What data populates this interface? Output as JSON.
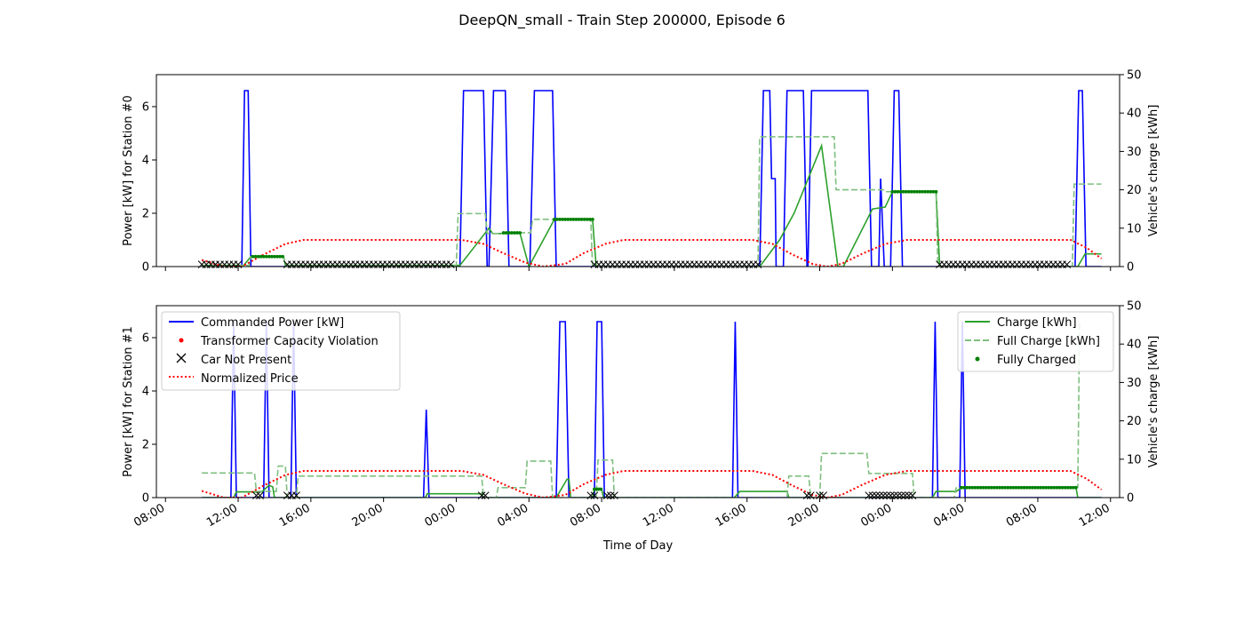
{
  "figure": {
    "title": "DeepQN_small - Train Step 200000, Episode 6"
  },
  "legend_left": [
    {
      "label": "Commanded Power [kW]",
      "color": "#0000ff",
      "style": "line"
    },
    {
      "label": "Transformer Capacity Violation",
      "color": "#ff0000",
      "style": "dot"
    },
    {
      "label": "Car Not Present",
      "color": "#000000",
      "style": "x"
    },
    {
      "label": "Normalized Price",
      "color": "#ff0000",
      "style": "dotted"
    }
  ],
  "legend_right": [
    {
      "label": "Charge [kWh]",
      "color": "#2ca02c",
      "style": "line"
    },
    {
      "label": "Full Charge [kWh]",
      "color": "#7fbf7f",
      "style": "dashed"
    },
    {
      "label": "Fully Charged",
      "color": "#008000",
      "style": "dot"
    }
  ],
  "chart_data": [
    {
      "type": "line",
      "panel": "station-0",
      "title": "",
      "xlabel": "",
      "ylabel": "Power [kW] for Station #0",
      "ylabel_right": "Vehicle's charge [kWh]",
      "x_unit": "hours since 08:00 on day 1",
      "xlim": [
        -0.5,
        52.5
      ],
      "ylim": [
        0,
        7.2
      ],
      "ylim_right": [
        0,
        50
      ],
      "yticks": [
        0,
        2,
        4,
        6
      ],
      "yticks_right": [
        0,
        10,
        20,
        30,
        40,
        50
      ],
      "show_xtick_labels": false,
      "series": [
        {
          "name": "Commanded Power [kW]",
          "axis": "left",
          "color": "#0000ff",
          "x": [
            2,
            4.2,
            4.35,
            4.55,
            4.7,
            16.2,
            16.4,
            17.5,
            17.7,
            17.8,
            18.05,
            18.7,
            18.9,
            19.75,
            19.95,
            20.05,
            20.3,
            21.3,
            21.5,
            32.7,
            32.9,
            33.25,
            33.35,
            33.45,
            33.55,
            33.6,
            33.75,
            33.8,
            33.9,
            34.0,
            34.2,
            35.1,
            35.3,
            35.35,
            35.55,
            38.65,
            38.85,
            39.25,
            39.35,
            39.55,
            39.6,
            39.9,
            40.1,
            40.35,
            40.55,
            50.05,
            50.25,
            50.45,
            50.65,
            51.5
          ],
          "y": [
            0,
            0,
            6.6,
            6.6,
            0,
            0,
            6.6,
            6.6,
            0,
            0,
            6.6,
            6.6,
            0,
            0,
            0,
            0,
            6.6,
            6.6,
            0,
            0,
            6.6,
            6.6,
            3.3,
            3.3,
            3.3,
            0,
            0,
            0,
            0,
            0,
            6.6,
            6.6,
            0,
            0,
            6.6,
            6.6,
            0,
            0,
            3.3,
            0,
            0,
            0,
            6.6,
            6.6,
            0,
            0,
            6.6,
            6.6,
            0,
            0
          ]
        },
        {
          "name": "Charge [kWh]",
          "axis": "right",
          "color": "#2ca02c",
          "x": [
            2,
            4.3,
            4.7,
            6.5,
            6.6,
            16.2,
            17.8,
            18.0,
            18.6,
            19.5,
            20.0,
            21.4,
            22.5,
            23.5,
            23.7,
            32.7,
            33.8,
            34.6,
            36.1,
            37.0,
            37.3,
            38.9,
            39.6,
            40.0,
            42.4,
            42.6,
            50.2,
            50.6,
            51.5
          ],
          "y": [
            0.3,
            0.3,
            2.6,
            2.6,
            0.3,
            0.3,
            10,
            8.6,
            8.6,
            8.8,
            0,
            12.3,
            12.3,
            12.3,
            0,
            0,
            7,
            14,
            31.5,
            0,
            0,
            15,
            15.5,
            19.5,
            19.5,
            0,
            0,
            3.3,
            3.3
          ]
        },
        {
          "name": "Full Charge [kWh]",
          "axis": "right",
          "color": "#7fbf7f",
          "style": "dashed",
          "x": [
            2,
            4.6,
            4.7,
            6.5,
            6.6,
            16.0,
            16.1,
            17.6,
            17.7,
            19.5,
            19.6,
            20.1,
            20.2,
            23.4,
            23.5,
            32.6,
            32.7,
            36.8,
            36.9,
            39.5,
            39.6,
            42.4,
            42.5,
            49.9,
            50.0,
            51.5
          ],
          "y": [
            0.3,
            0.3,
            2.6,
            2.6,
            0.3,
            0.3,
            13.8,
            13.8,
            8.6,
            8.6,
            8.8,
            8.8,
            12.3,
            12.3,
            0,
            0,
            33.8,
            33.8,
            20,
            20,
            19.5,
            19.5,
            0,
            0,
            21.5,
            21.5
          ]
        },
        {
          "name": "Normalized Price",
          "axis": "left",
          "color": "#ff0000",
          "style": "dotted",
          "x": [
            2,
            3.2,
            4.2,
            5.4,
            6.6,
            7.6,
            16.3,
            17.5,
            18.6,
            19.8,
            20.8,
            22.0,
            23.0,
            24.2,
            25.2,
            32.3,
            33.4,
            34.5,
            35.6,
            36.4,
            37.2,
            38.4,
            39.6,
            40.8,
            49.8,
            50.7,
            51.5
          ],
          "y": [
            0.25,
            0,
            0,
            0.45,
            0.85,
            1.0,
            1.0,
            0.85,
            0.5,
            0.15,
            0,
            0.1,
            0.5,
            0.85,
            1.0,
            1.0,
            0.85,
            0.45,
            0.1,
            0,
            0.1,
            0.5,
            0.85,
            1.0,
            1.0,
            0.7,
            0.3
          ]
        }
      ],
      "markers": [
        {
          "name": "Fully Charged",
          "axis": "right",
          "color": "#008000",
          "shape": "dot",
          "x_range": [
            4.8,
            6.5
          ],
          "step": 0.15,
          "y": 2.6
        },
        {
          "name": "Fully Charged",
          "axis": "right",
          "color": "#008000",
          "shape": "dot",
          "x_range": [
            18.6,
            19.5
          ],
          "step": 0.15,
          "y": 8.8
        },
        {
          "name": "Fully Charged",
          "axis": "right",
          "color": "#008000",
          "shape": "dot",
          "x_range": [
            21.4,
            23.5
          ],
          "step": 0.15,
          "y": 12.3
        },
        {
          "name": "Fully Charged",
          "axis": "right",
          "color": "#008000",
          "shape": "dot",
          "x_range": [
            40.0,
            42.4
          ],
          "step": 0.15,
          "y": 19.5
        },
        {
          "name": "Car Not Present",
          "axis": "left",
          "color": "#000000",
          "shape": "x",
          "x_range": [
            2.0,
            4.1
          ],
          "step": 0.25,
          "y": 0.08
        },
        {
          "name": "Car Not Present",
          "axis": "left",
          "color": "#000000",
          "shape": "x",
          "x_range": [
            6.7,
            15.9
          ],
          "step": 0.25,
          "y": 0.08
        },
        {
          "name": "Car Not Present",
          "axis": "left",
          "color": "#000000",
          "shape": "x",
          "x_range": [
            23.6,
            32.6
          ],
          "step": 0.25,
          "y": 0.08
        },
        {
          "name": "Car Not Present",
          "axis": "left",
          "color": "#000000",
          "shape": "x",
          "x_range": [
            42.6,
            49.8
          ],
          "step": 0.25,
          "y": 0.08
        }
      ]
    },
    {
      "type": "line",
      "panel": "station-1",
      "title": "",
      "xlabel": "Time of Day",
      "ylabel": "Power [kW] for Station #1",
      "ylabel_right": "Vehicle's charge [kWh]",
      "x_unit": "hours since 08:00 on day 1",
      "xlim": [
        -0.5,
        52.5
      ],
      "ylim": [
        0,
        7.2
      ],
      "ylim_right": [
        0,
        50
      ],
      "yticks": [
        0,
        2,
        4,
        6
      ],
      "yticks_right": [
        0,
        10,
        20,
        30,
        40,
        50
      ],
      "xticks": [
        0,
        4,
        8,
        12,
        16,
        20,
        24,
        28,
        32,
        36,
        40,
        44,
        48,
        52
      ],
      "xtick_labels": [
        "08:00",
        "12:00",
        "16:00",
        "20:00",
        "00:00",
        "04:00",
        "08:00",
        "12:00",
        "16:00",
        "20:00",
        "00:00",
        "04:00",
        "08:00",
        "12:00"
      ],
      "series": [
        {
          "name": "Commanded Power [kW]",
          "axis": "left",
          "color": "#0000ff",
          "x": [
            2,
            3.6,
            3.75,
            3.9,
            5.4,
            5.55,
            5.7,
            6.9,
            7.05,
            7.2,
            14.2,
            14.35,
            14.5,
            21.5,
            21.7,
            22.0,
            22.2,
            23.6,
            23.75,
            24.0,
            24.15,
            31.2,
            31.35,
            31.5,
            42.2,
            42.35,
            42.5,
            43.7,
            43.85,
            44.0,
            51.5
          ],
          "y": [
            0,
            0,
            6.6,
            0,
            0,
            6.6,
            0,
            0,
            6.6,
            0,
            0,
            3.3,
            0,
            0,
            6.6,
            6.6,
            0,
            0,
            6.6,
            6.6,
            0,
            0,
            6.6,
            0,
            0,
            6.6,
            0,
            0,
            6.6,
            0,
            0
          ]
        },
        {
          "name": "Charge [kWh]",
          "axis": "right",
          "color": "#2ca02c",
          "x": [
            2,
            3.75,
            3.9,
            5.3,
            5.7,
            5.9,
            6.0,
            7.1,
            7.2,
            14.3,
            14.4,
            17.4,
            17.5,
            21.5,
            22.1,
            22.2,
            22.3,
            23.5,
            23.6,
            24.0,
            24.1,
            31.3,
            31.6,
            34.2,
            34.3,
            42.2,
            42.4,
            43.5,
            43.8,
            44.0,
            50.1,
            50.2,
            51.5
          ],
          "y": [
            0,
            0,
            1.5,
            1.5,
            3.2,
            2.8,
            0,
            0,
            0,
            0,
            1,
            1,
            0,
            0,
            4.8,
            4.8,
            0,
            0,
            2.2,
            2.2,
            0,
            0,
            1.6,
            1.6,
            0,
            0,
            1.6,
            1.6,
            2.5,
            2.6,
            2.6,
            0,
            0
          ]
        },
        {
          "name": "Full Charge [kWh]",
          "axis": "right",
          "color": "#7fbf7f",
          "style": "dashed",
          "x": [
            2,
            4.9,
            5.0,
            6.1,
            6.2,
            6.6,
            6.7,
            7.2,
            7.3,
            17.4,
            17.5,
            18.2,
            18.3,
            19.8,
            19.9,
            21.2,
            21.3,
            23.7,
            23.8,
            24.6,
            24.7,
            34.2,
            34.3,
            35.4,
            35.5,
            36.0,
            36.1,
            38.6,
            38.7,
            41.1,
            41.2,
            43.4,
            43.5,
            50.1,
            50.2,
            50.3
          ],
          "y": [
            6.4,
            6.4,
            1.6,
            1.6,
            8.2,
            8.2,
            0,
            0,
            5.6,
            5.6,
            0,
            0,
            2.6,
            2.6,
            9.5,
            9.5,
            0,
            0,
            9.8,
            9.8,
            0,
            0,
            5.6,
            5.6,
            0,
            0,
            11.5,
            11.5,
            6.3,
            6.3,
            0,
            0,
            2.5,
            2.5,
            2.7,
            46
          ]
        },
        {
          "name": "Normalized Price",
          "axis": "left",
          "color": "#ff0000",
          "style": "dotted",
          "x": [
            2,
            3.2,
            4.2,
            5.4,
            6.6,
            7.6,
            16.3,
            17.5,
            18.6,
            19.8,
            20.8,
            22.0,
            23.0,
            24.2,
            25.2,
            32.3,
            33.4,
            34.5,
            35.6,
            36.4,
            37.2,
            38.4,
            39.6,
            40.8,
            49.8,
            50.7,
            51.5
          ],
          "y": [
            0.25,
            0,
            0,
            0.45,
            0.85,
            1.0,
            1.0,
            0.85,
            0.5,
            0.15,
            0,
            0.1,
            0.5,
            0.85,
            1.0,
            1.0,
            0.85,
            0.45,
            0.1,
            0,
            0.1,
            0.5,
            0.85,
            1.0,
            1.0,
            0.7,
            0.3
          ]
        }
      ],
      "markers": [
        {
          "name": "Fully Charged",
          "axis": "right",
          "color": "#008000",
          "shape": "dot",
          "x_range": [
            23.6,
            24.0
          ],
          "step": 0.12,
          "y": 2.2
        },
        {
          "name": "Fully Charged",
          "axis": "right",
          "color": "#008000",
          "shape": "dot",
          "x_range": [
            43.8,
            50.1
          ],
          "step": 0.15,
          "y": 2.6
        },
        {
          "name": "Car Not Present",
          "axis": "left",
          "color": "#000000",
          "shape": "x",
          "x_range": [
            38.7,
            41.1
          ],
          "step": 0.2,
          "y": 0.08
        },
        {
          "name": "Car Not Present",
          "axis": "left",
          "color": "#000000",
          "shape": "x",
          "x_range": [
            5.0,
            5.2
          ],
          "step": 0.2,
          "y": 0.08
        },
        {
          "name": "Car Not Present",
          "axis": "left",
          "color": "#000000",
          "shape": "x",
          "x_range": [
            6.7,
            7.2
          ],
          "step": 0.25,
          "y": 0.08
        },
        {
          "name": "Car Not Present",
          "axis": "left",
          "color": "#000000",
          "shape": "x",
          "x_range": [
            17.4,
            17.6
          ],
          "step": 0.2,
          "y": 0.08
        },
        {
          "name": "Car Not Present",
          "axis": "left",
          "color": "#000000",
          "shape": "x",
          "x_range": [
            23.4,
            23.6
          ],
          "step": 0.2,
          "y": 0.08
        },
        {
          "name": "Car Not Present",
          "axis": "left",
          "color": "#000000",
          "shape": "x",
          "x_range": [
            24.3,
            24.7
          ],
          "step": 0.2,
          "y": 0.08
        },
        {
          "name": "Car Not Present",
          "axis": "left",
          "color": "#000000",
          "shape": "x",
          "x_range": [
            35.3,
            35.5
          ],
          "step": 0.2,
          "y": 0.08
        },
        {
          "name": "Car Not Present",
          "axis": "left",
          "color": "#000000",
          "shape": "x",
          "x_range": [
            36.0,
            36.2
          ],
          "step": 0.2,
          "y": 0.08
        }
      ]
    }
  ]
}
